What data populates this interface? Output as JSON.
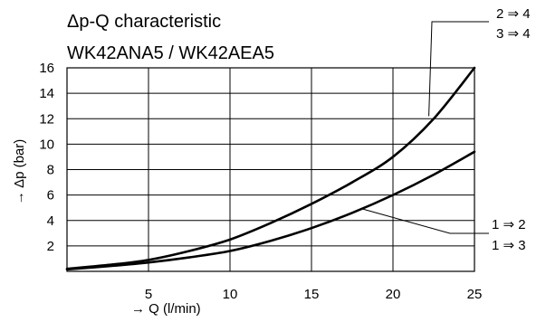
{
  "chart_data": {
    "type": "line",
    "title": "Δp-Q characteristic",
    "subtitle": "WK42ANA5 / WK42AEA5",
    "xlabel": "→ Q (l/min)",
    "ylabel": "→ Δp (bar)",
    "xlim": [
      0,
      25
    ],
    "ylim": [
      0,
      16
    ],
    "x_ticks": [
      5,
      10,
      15,
      20,
      25
    ],
    "y_ticks": [
      2,
      4,
      6,
      8,
      10,
      12,
      14,
      16
    ],
    "grid": true,
    "series": [
      {
        "name": "2 ⇒ 4 / 3 ⇒ 4",
        "labels": [
          "2 ⇒ 4",
          "3 ⇒ 4"
        ],
        "x": [
          0,
          2.5,
          5,
          7.5,
          10,
          12.5,
          15,
          17.5,
          20,
          22.5,
          25
        ],
        "y": [
          0.2,
          0.5,
          0.9,
          1.6,
          2.5,
          3.8,
          5.3,
          7.0,
          9.0,
          12.0,
          16.0
        ]
      },
      {
        "name": "1 ⇒ 2 / 1 ⇒ 3",
        "labels": [
          "1 ⇒ 2",
          "1 ⇒ 3"
        ],
        "x": [
          0,
          2.5,
          5,
          7.5,
          10,
          12.5,
          15,
          17.5,
          20,
          22.5,
          25
        ],
        "y": [
          0.15,
          0.4,
          0.7,
          1.1,
          1.6,
          2.4,
          3.4,
          4.6,
          6.0,
          7.6,
          9.4
        ]
      }
    ]
  }
}
